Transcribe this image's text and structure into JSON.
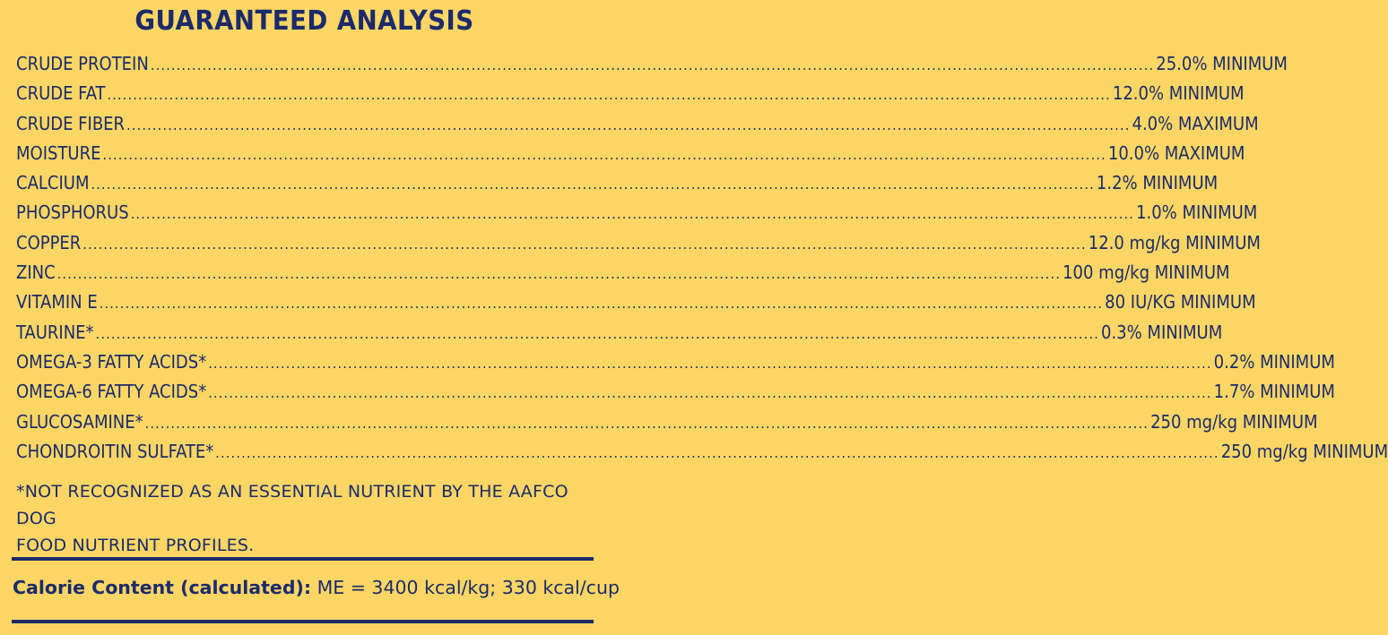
{
  "title": "GUARANTEED ANALYSIS",
  "rows": [
    {
      "label": "CRUDE PROTEIN",
      "value": "25.0% MINIMUM"
    },
    {
      "label": "CRUDE FAT",
      "value": "12.0% MINIMUM"
    },
    {
      "label": "CRUDE FIBER",
      "value": "4.0% MAXIMUM"
    },
    {
      "label": "MOISTURE",
      "value": "10.0% MAXIMUM"
    },
    {
      "label": "CALCIUM",
      "value": "1.2% MINIMUM"
    },
    {
      "label": "PHOSPHORUS",
      "value": "1.0% MINIMUM"
    },
    {
      "label": "COPPER",
      "value": "12.0 mg/kg MINIMUM"
    },
    {
      "label": "ZINC",
      "value": "100 mg/kg MINIMUM"
    },
    {
      "label": "VITAMIN E",
      "value": "80 IU/KG MINIMUM"
    },
    {
      "label": "TAURINE*",
      "value": "0.3% MINIMUM"
    },
    {
      "label": "OMEGA-3 FATTY ACIDS*",
      "value": "0.2% MINIMUM"
    },
    {
      "label": "OMEGA-6 FATTY ACIDS*",
      "value": "1.7% MINIMUM"
    },
    {
      "label": "GLUCOSAMINE*",
      "value": "250 mg/kg MINIMUM"
    },
    {
      "label": "CHONDROITIN SULFATE*",
      "value": "250 mg/kg MINIMUM"
    }
  ],
  "footnote": {
    "line1": "*NOT RECOGNIZED AS AN ESSENTIAL NUTRIENT BY THE AAFCO DOG",
    "line2": "FOOD NUTRIENT PROFILES."
  },
  "calorie": {
    "label": "Calorie Content (calculated):",
    "value": " ME = 3400 kcal/kg; 330 kcal/cup"
  },
  "colors": {
    "background": "#fcd664",
    "text": "#1b2a6b"
  }
}
